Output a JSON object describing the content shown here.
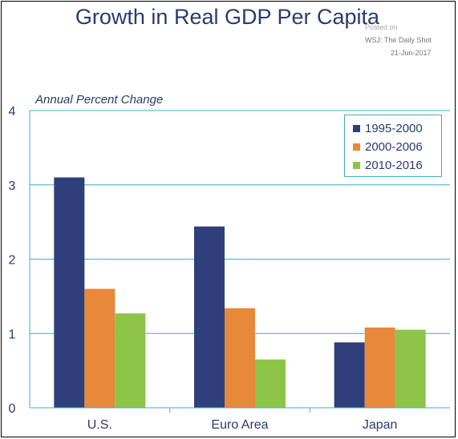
{
  "source": {
    "posted": "Posted on",
    "outlet": "WSJ: The Daily Shot",
    "date": "21-Jun-2017"
  },
  "chart_data": {
    "type": "bar",
    "title": "Growth in Real GDP Per Capita",
    "ylabel": "Annual Percent Change",
    "xlabel": "",
    "categories": [
      "U.S.",
      "Euro Area",
      "Japan"
    ],
    "series": [
      {
        "name": "1995-2000",
        "color": "#2e3f7c",
        "values": [
          3.1,
          2.44,
          0.88
        ]
      },
      {
        "name": "2000-2006",
        "color": "#e8883a",
        "values": [
          1.6,
          1.34,
          1.08
        ]
      },
      {
        "name": "2010-2016",
        "color": "#8dc549",
        "values": [
          1.27,
          0.65,
          1.05
        ]
      }
    ],
    "ylim": [
      0,
      4
    ],
    "yticks": [
      "0",
      "1",
      "2",
      "3",
      "4"
    ],
    "grid": true,
    "legend_position": "top-right"
  }
}
